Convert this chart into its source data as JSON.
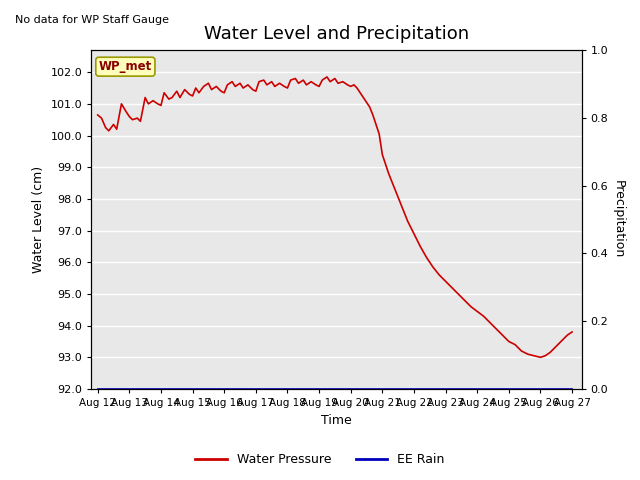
{
  "title": "Water Level and Precipitation",
  "top_left_text": "No data for WP Staff Gauge",
  "legend_label": "WP_met",
  "xlabel": "Time",
  "ylabel_left": "Water Level (cm)",
  "ylabel_right": "Precipitation",
  "ylim_left": [
    92.0,
    102.7
  ],
  "ylim_right": [
    0.0,
    1.0
  ],
  "yticks_left": [
    92.0,
    93.0,
    94.0,
    95.0,
    96.0,
    97.0,
    98.0,
    99.0,
    100.0,
    101.0,
    102.0
  ],
  "ytick_labels_left": [
    "92.0",
    "93.0",
    "94.0",
    "95.0",
    "96.0",
    "97.0",
    "98.0",
    "99.0",
    "100.0",
    "101.0",
    "102.0"
  ],
  "yticks_right": [
    0.0,
    0.2,
    0.4,
    0.6,
    0.8,
    1.0
  ],
  "ytick_labels_right": [
    "0.0",
    "0.2",
    "0.4",
    "0.6",
    "0.8",
    "1.0"
  ],
  "x_tick_labels": [
    "Aug 12",
    "Aug 13",
    "Aug 14",
    "Aug 15",
    "Aug 16",
    "Aug 17",
    "Aug 18",
    "Aug 19",
    "Aug 20",
    "Aug 21",
    "Aug 22",
    "Aug 23",
    "Aug 24",
    "Aug 25",
    "Aug 26",
    "Aug 27"
  ],
  "line_color": "#cc0000",
  "rain_color": "#0000bb",
  "background_color": "#e8e8e8",
  "water_level_x": [
    0,
    0.12,
    0.25,
    0.35,
    0.5,
    0.6,
    0.75,
    0.9,
    1.0,
    1.1,
    1.25,
    1.35,
    1.5,
    1.6,
    1.75,
    1.9,
    2.0,
    2.1,
    2.25,
    2.35,
    2.5,
    2.6,
    2.75,
    2.9,
    3.0,
    3.1,
    3.2,
    3.35,
    3.5,
    3.6,
    3.75,
    3.9,
    4.0,
    4.1,
    4.25,
    4.35,
    4.5,
    4.6,
    4.75,
    4.9,
    5.0,
    5.1,
    5.25,
    5.35,
    5.5,
    5.6,
    5.75,
    5.9,
    6.0,
    6.1,
    6.25,
    6.35,
    6.5,
    6.6,
    6.75,
    6.9,
    7.0,
    7.1,
    7.25,
    7.35,
    7.5,
    7.6,
    7.75,
    7.9,
    8.0,
    8.1,
    8.2,
    8.3,
    8.4,
    8.5,
    8.6,
    8.7,
    8.8,
    8.9,
    9.0,
    9.2,
    9.4,
    9.6,
    9.8,
    10.0,
    10.2,
    10.4,
    10.6,
    10.8,
    11.0,
    11.2,
    11.4,
    11.6,
    11.8,
    12.0,
    12.2,
    12.4,
    12.6,
    12.8,
    13.0,
    13.2,
    13.4,
    13.6,
    13.8,
    14.0,
    14.15,
    14.3,
    14.5,
    14.7,
    14.85,
    15.0
  ],
  "water_level_y": [
    100.65,
    100.55,
    100.25,
    100.15,
    100.35,
    100.2,
    101.0,
    100.75,
    100.6,
    100.5,
    100.55,
    100.45,
    101.2,
    101.0,
    101.1,
    101.0,
    100.95,
    101.35,
    101.15,
    101.2,
    101.4,
    101.2,
    101.45,
    101.3,
    101.25,
    101.5,
    101.35,
    101.55,
    101.65,
    101.45,
    101.55,
    101.4,
    101.35,
    101.6,
    101.7,
    101.55,
    101.65,
    101.5,
    101.6,
    101.45,
    101.4,
    101.7,
    101.75,
    101.6,
    101.7,
    101.55,
    101.65,
    101.55,
    101.5,
    101.75,
    101.8,
    101.65,
    101.75,
    101.6,
    101.7,
    101.6,
    101.55,
    101.75,
    101.85,
    101.7,
    101.8,
    101.65,
    101.7,
    101.6,
    101.55,
    101.6,
    101.5,
    101.35,
    101.2,
    101.05,
    100.9,
    100.65,
    100.35,
    100.05,
    99.4,
    98.8,
    98.3,
    97.8,
    97.3,
    96.9,
    96.5,
    96.15,
    95.85,
    95.6,
    95.4,
    95.2,
    95.0,
    94.8,
    94.6,
    94.45,
    94.3,
    94.1,
    93.9,
    93.7,
    93.5,
    93.4,
    93.2,
    93.1,
    93.05,
    93.0,
    93.05,
    93.15,
    93.35,
    93.55,
    93.7,
    93.8
  ],
  "title_fontsize": 13,
  "label_fontsize": 9,
  "tick_fontsize": 8
}
